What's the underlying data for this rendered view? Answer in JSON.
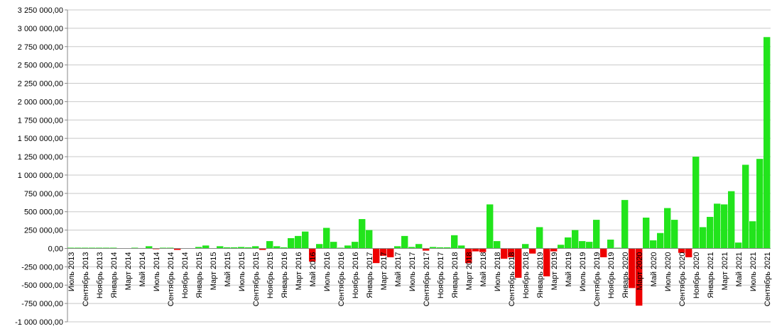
{
  "chart_data": {
    "type": "bar",
    "categories": [
      "Июль 2013",
      null,
      "Сентябрь 2013",
      null,
      "Ноябрь 2013",
      null,
      "Январь 2014",
      null,
      "Март 2014",
      null,
      "Май 2014",
      null,
      "Июль 2014",
      null,
      "Сентябрь 2014",
      null,
      "Ноябрь 2014",
      null,
      "Январь 2015",
      null,
      "Март 2015",
      null,
      "Май 2015",
      null,
      "Июль 2015",
      null,
      "Сентябрь 2015",
      null,
      "Ноябрь 2015",
      null,
      "Январь 2016",
      null,
      "Март 2016",
      null,
      "Май 2016",
      null,
      "Июль 2016",
      null,
      "Сентябрь 2016",
      null,
      "Ноябрь 2016",
      null,
      "Январь 2017",
      null,
      "Март 2017",
      null,
      "Май 2017",
      null,
      "Июль 2017",
      null,
      "Сентябрь 2017",
      null,
      "Ноябрь 2017",
      null,
      "Январь 2018",
      null,
      "Март 2018",
      null,
      "Май 2018",
      null,
      "Июль 2018",
      null,
      "Сентябрь 2018",
      null,
      "Ноябрь 2018",
      null,
      "Январь 2019",
      null,
      "Март 2019",
      null,
      "Май 2019",
      null,
      "Июль 2019",
      null,
      "Сентябрь 2019",
      null,
      "Ноябрь 2019",
      null,
      "Январь 2020",
      null,
      "Март 2020",
      null,
      "Май 2020",
      null,
      "Июль 2020",
      null,
      "Сентябрь 2020",
      null,
      "Ноябрь 2020",
      null,
      "Январь 2021",
      null,
      "Март 2021",
      null,
      "Май 2021",
      null,
      "Июль 2021",
      null,
      "Сентябрь 2021"
    ],
    "values": [
      10000,
      10000,
      10000,
      10000,
      10000,
      10000,
      10000,
      0,
      0,
      10000,
      5000,
      30000,
      -10000,
      10000,
      10000,
      -20000,
      0,
      0,
      20000,
      40000,
      0,
      30000,
      15000,
      15000,
      20000,
      15000,
      30000,
      -20000,
      100000,
      30000,
      15000,
      140000,
      170000,
      230000,
      -180000,
      60000,
      280000,
      90000,
      10000,
      40000,
      90000,
      400000,
      250000,
      -200000,
      -100000,
      -120000,
      30000,
      170000,
      20000,
      60000,
      -30000,
      20000,
      15000,
      15000,
      180000,
      40000,
      -200000,
      -40000,
      -50000,
      600000,
      100000,
      -140000,
      -120000,
      -400000,
      60000,
      -70000,
      290000,
      -380000,
      -40000,
      50000,
      150000,
      250000,
      100000,
      90000,
      390000,
      -120000,
      120000,
      10000,
      660000,
      -540000,
      -780000,
      420000,
      110000,
      210000,
      550000,
      390000,
      -60000,
      -120000,
      1250000,
      290000,
      430000,
      610000,
      600000,
      780000,
      80000,
      1140000,
      370000,
      1220000,
      2880000
    ],
    "color_positive": "#22e41c",
    "color_negative": "#ee0000",
    "ylim": [
      -1000000,
      3250000
    ],
    "yticks": [
      {
        "value": -1000000,
        "label": "-1 000 000,00"
      },
      {
        "value": -750000,
        "label": "-750 000,00"
      },
      {
        "value": -500000,
        "label": "-500 000,00"
      },
      {
        "value": -250000,
        "label": "-250 000,00"
      },
      {
        "value": 0,
        "label": "0,00"
      },
      {
        "value": 250000,
        "label": "250 000,00"
      },
      {
        "value": 500000,
        "label": "500 000,00"
      },
      {
        "value": 750000,
        "label": "750 000,00"
      },
      {
        "value": 1000000,
        "label": "1 000 000,00"
      },
      {
        "value": 1250000,
        "label": "1 250 000,00"
      },
      {
        "value": 1500000,
        "label": "1 500 000,00"
      },
      {
        "value": 1750000,
        "label": "1 750 000,00"
      },
      {
        "value": 2000000,
        "label": "2 000 000,00"
      },
      {
        "value": 2250000,
        "label": "2 250 000,00"
      },
      {
        "value": 2500000,
        "label": "2 500 000,00"
      },
      {
        "value": 2750000,
        "label": "2 750 000,00"
      },
      {
        "value": 3000000,
        "label": "3 000 000,00"
      },
      {
        "value": 3250000,
        "label": "3 250 000,00"
      }
    ],
    "grid": true
  }
}
